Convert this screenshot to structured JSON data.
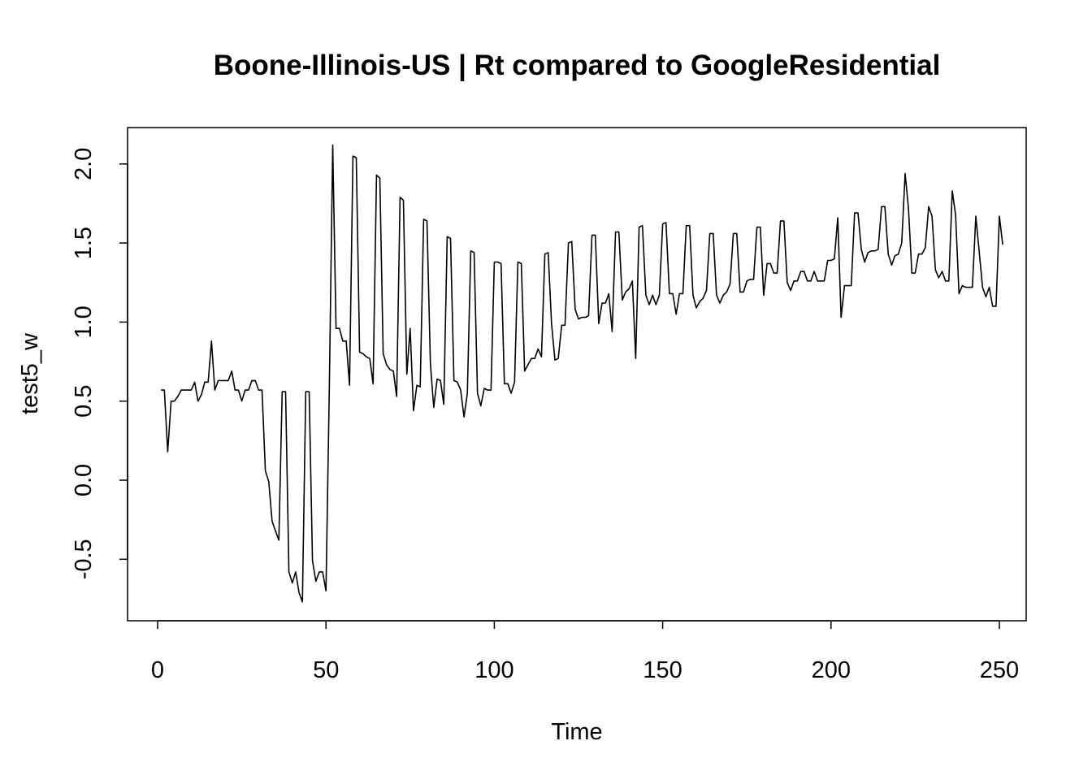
{
  "chart_data": {
    "type": "line",
    "title": "Boone-Illinois-US | Rt compared to GoogleResidential",
    "xlabel": "Time",
    "ylabel": "test5_w",
    "xlim": [
      0,
      250
    ],
    "ylim": [
      -0.8,
      2.15
    ],
    "x_ticks": [
      0,
      50,
      100,
      150,
      200,
      250
    ],
    "y_ticks": [
      -0.5,
      0.0,
      0.5,
      1.0,
      1.5,
      2.0
    ],
    "x_tick_labels": [
      "0",
      "50",
      "100",
      "150",
      "200",
      "250"
    ],
    "y_tick_labels": [
      "-0.5",
      "0.0",
      "0.5",
      "1.0",
      "1.5",
      "2.0"
    ],
    "grid": false,
    "legend": "none",
    "line_color": "#000000",
    "series": [
      {
        "x_start": 1,
        "values": [
          0.57,
          0.57,
          0.18,
          0.5,
          0.5,
          0.53,
          0.57,
          0.57,
          0.57,
          0.57,
          0.62,
          0.5,
          0.54,
          0.62,
          0.62,
          0.88,
          0.57,
          0.63,
          0.63,
          0.63,
          0.63,
          0.69,
          0.57,
          0.57,
          0.5,
          0.57,
          0.57,
          0.63,
          0.63,
          0.57,
          0.57,
          0.06,
          -0.01,
          -0.26,
          -0.32,
          -0.38,
          0.56,
          0.56,
          -0.58,
          -0.65,
          -0.58,
          -0.71,
          -0.77,
          0.56,
          0.56,
          -0.51,
          -0.64,
          -0.58,
          -0.58,
          -0.7,
          0.57,
          2.12,
          0.96,
          0.96,
          0.88,
          0.88,
          0.6,
          2.05,
          2.04,
          0.81,
          0.8,
          0.78,
          0.77,
          0.61,
          1.93,
          1.91,
          0.8,
          0.73,
          0.7,
          0.69,
          0.53,
          1.79,
          1.77,
          0.67,
          0.96,
          0.44,
          0.6,
          0.59,
          1.65,
          1.64,
          0.74,
          0.46,
          0.64,
          0.63,
          0.48,
          1.54,
          1.53,
          0.63,
          0.62,
          0.57,
          0.4,
          0.55,
          1.45,
          1.44,
          0.55,
          0.47,
          0.58,
          0.57,
          0.57,
          1.38,
          1.38,
          1.37,
          0.61,
          0.61,
          0.55,
          0.62,
          1.38,
          1.37,
          0.69,
          0.73,
          0.77,
          0.77,
          0.83,
          0.78,
          1.43,
          1.44,
          0.99,
          0.76,
          0.77,
          0.98,
          0.98,
          1.5,
          1.51,
          1.08,
          1.02,
          1.03,
          1.03,
          1.04,
          1.55,
          1.55,
          0.99,
          1.12,
          1.12,
          1.18,
          0.94,
          1.57,
          1.57,
          1.14,
          1.19,
          1.21,
          1.26,
          0.77,
          1.6,
          1.61,
          1.17,
          1.11,
          1.17,
          1.11,
          1.17,
          1.62,
          1.63,
          1.18,
          1.18,
          1.05,
          1.18,
          1.18,
          1.61,
          1.61,
          1.17,
          1.09,
          1.13,
          1.15,
          1.2,
          1.56,
          1.56,
          1.17,
          1.12,
          1.17,
          1.19,
          1.24,
          1.56,
          1.56,
          1.19,
          1.19,
          1.26,
          1.27,
          1.27,
          1.6,
          1.6,
          1.17,
          1.37,
          1.37,
          1.31,
          1.31,
          1.64,
          1.64,
          1.25,
          1.2,
          1.26,
          1.26,
          1.32,
          1.32,
          1.26,
          1.26,
          1.32,
          1.26,
          1.26,
          1.26,
          1.39,
          1.39,
          1.4,
          1.66,
          1.03,
          1.23,
          1.23,
          1.23,
          1.69,
          1.69,
          1.46,
          1.38,
          1.44,
          1.45,
          1.45,
          1.46,
          1.73,
          1.73,
          1.43,
          1.36,
          1.42,
          1.43,
          1.5,
          1.94,
          1.72,
          1.31,
          1.31,
          1.43,
          1.43,
          1.47,
          1.73,
          1.67,
          1.33,
          1.28,
          1.32,
          1.26,
          1.26,
          1.83,
          1.68,
          1.18,
          1.23,
          1.22,
          1.22,
          1.22,
          1.67,
          1.45,
          1.22,
          1.16,
          1.22,
          1.1,
          1.1,
          1.67,
          1.49
        ]
      }
    ]
  }
}
